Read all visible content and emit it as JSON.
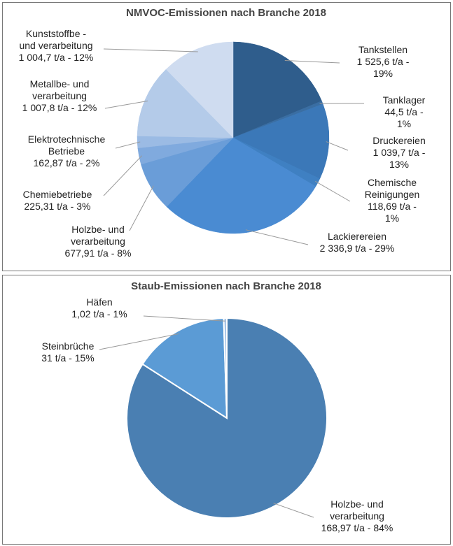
{
  "chart_data": [
    {
      "type": "pie",
      "title": "NMVOC-Emissionen nach Branche 2018",
      "categories": [
        "Tankstellen",
        "Tanklager",
        "Druckereien",
        "Chemische\nReinigungen",
        "Lackierereien",
        "Holzbe- und\nverarbeitung",
        "Chemiebetriebe",
        "Elektrotechnische\nBetriebe",
        "Metallbe- und\nverarbeitung",
        "Kunststoffbe -\nund verarbeitung"
      ],
      "values": [
        1525.6,
        44.5,
        1039.7,
        118.69,
        2336.9,
        677.91,
        225.31,
        162.87,
        1007.8,
        1004.7
      ],
      "value_labels": [
        "1 525,6 t/a - 19%",
        "44,5 t/a - 1%",
        "1 039,7 t/a - 13%",
        "118,69 t/a - 1%",
        "2 336,9 t/a - 29%",
        "677,91 t/a - 8%",
        "225,31 t/a - 3%",
        "162,87 t/a - 2%",
        "1 007,8 t/a - 12%",
        "1 004,7 t/a - 12%"
      ],
      "colors": [
        "#2f5d8c",
        "#3a6ea3",
        "#3b78b8",
        "#3f80c2",
        "#4a8bd2",
        "#6a9dd8",
        "#80aade",
        "#9bbbe4",
        "#b4cbe9",
        "#cfdcf0"
      ]
    },
    {
      "type": "pie",
      "title": "Staub-Emissionen nach Branche 2018",
      "categories": [
        "Holzbe- und\nverarbeitung",
        "Steinbrüche",
        "Häfen"
      ],
      "values": [
        168.97,
        31,
        1.02
      ],
      "value_labels": [
        "168,97 t/a - 84%",
        "31 t/a - 15%",
        "1,02 t/a - 1%"
      ],
      "colors": [
        "#4a7fb2",
        "#5b9bd5",
        "#a9c5e6"
      ]
    }
  ]
}
